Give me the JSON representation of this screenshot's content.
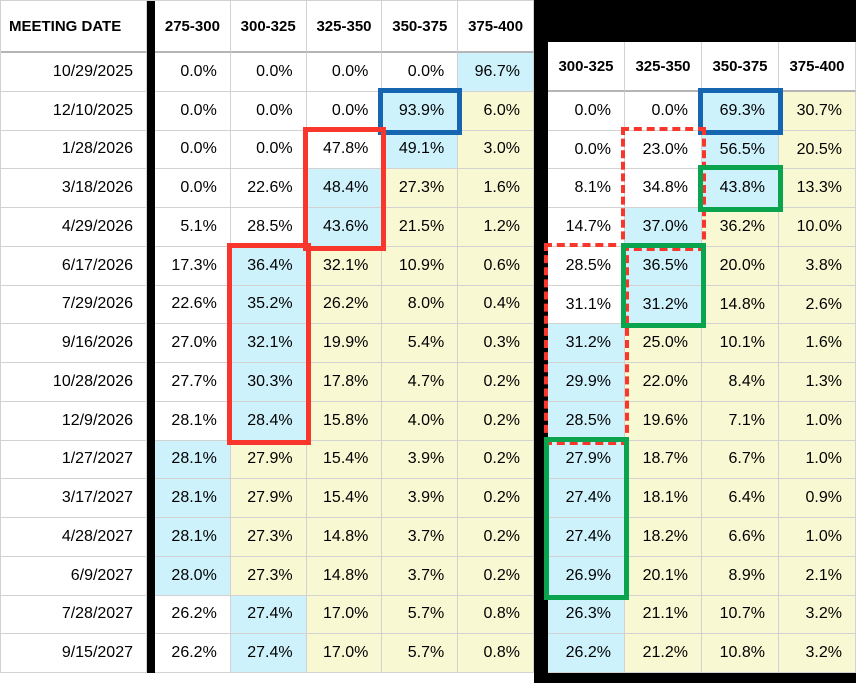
{
  "chart_data": {
    "type": "table",
    "description": "Rate-range probability grid by meeting date, two side-by-side heatmap tables with annotation boxes",
    "tables": [
      {
        "id": "left",
        "columns": [
          "MEETING DATE",
          "275-300",
          "300-325",
          "325-350",
          "350-375",
          "375-400"
        ],
        "rows": [
          {
            "date": "10/29/2025",
            "values": [
              "0.0%",
              "0.0%",
              "0.0%",
              "0.0%",
              "96.7%"
            ],
            "bg": [
              "w",
              "w",
              "w",
              "w",
              "c"
            ]
          },
          {
            "date": "12/10/2025",
            "values": [
              "0.0%",
              "0.0%",
              "0.0%",
              "93.9%",
              "6.0%"
            ],
            "bg": [
              "w",
              "w",
              "w",
              "c",
              "y"
            ]
          },
          {
            "date": "1/28/2026",
            "values": [
              "0.0%",
              "0.0%",
              "47.8%",
              "49.1%",
              "3.0%"
            ],
            "bg": [
              "w",
              "w",
              "w",
              "c",
              "y"
            ]
          },
          {
            "date": "3/18/2026",
            "values": [
              "0.0%",
              "22.6%",
              "48.4%",
              "27.3%",
              "1.6%"
            ],
            "bg": [
              "w",
              "w",
              "c",
              "y",
              "y"
            ]
          },
          {
            "date": "4/29/2026",
            "values": [
              "5.1%",
              "28.5%",
              "43.6%",
              "21.5%",
              "1.2%"
            ],
            "bg": [
              "w",
              "w",
              "c",
              "y",
              "y"
            ]
          },
          {
            "date": "6/17/2026",
            "values": [
              "17.3%",
              "36.4%",
              "32.1%",
              "10.9%",
              "0.6%"
            ],
            "bg": [
              "w",
              "c",
              "y",
              "y",
              "y"
            ]
          },
          {
            "date": "7/29/2026",
            "values": [
              "22.6%",
              "35.2%",
              "26.2%",
              "8.0%",
              "0.4%"
            ],
            "bg": [
              "w",
              "c",
              "y",
              "y",
              "y"
            ]
          },
          {
            "date": "9/16/2026",
            "values": [
              "27.0%",
              "32.1%",
              "19.9%",
              "5.4%",
              "0.3%"
            ],
            "bg": [
              "w",
              "c",
              "y",
              "y",
              "y"
            ]
          },
          {
            "date": "10/28/2026",
            "values": [
              "27.7%",
              "30.3%",
              "17.8%",
              "4.7%",
              "0.2%"
            ],
            "bg": [
              "w",
              "c",
              "y",
              "y",
              "y"
            ]
          },
          {
            "date": "12/9/2026",
            "values": [
              "28.1%",
              "28.4%",
              "15.8%",
              "4.0%",
              "0.2%"
            ],
            "bg": [
              "w",
              "c",
              "y",
              "y",
              "y"
            ]
          },
          {
            "date": "1/27/2027",
            "values": [
              "28.1%",
              "27.9%",
              "15.4%",
              "3.9%",
              "0.2%"
            ],
            "bg": [
              "c",
              "y",
              "y",
              "y",
              "y"
            ]
          },
          {
            "date": "3/17/2027",
            "values": [
              "28.1%",
              "27.9%",
              "15.4%",
              "3.9%",
              "0.2%"
            ],
            "bg": [
              "c",
              "y",
              "y",
              "y",
              "y"
            ]
          },
          {
            "date": "4/28/2027",
            "values": [
              "28.1%",
              "27.3%",
              "14.8%",
              "3.7%",
              "0.2%"
            ],
            "bg": [
              "c",
              "y",
              "y",
              "y",
              "y"
            ]
          },
          {
            "date": "6/9/2027",
            "values": [
              "28.0%",
              "27.3%",
              "14.8%",
              "3.7%",
              "0.2%"
            ],
            "bg": [
              "c",
              "y",
              "y",
              "y",
              "y"
            ]
          },
          {
            "date": "7/28/2027",
            "values": [
              "26.2%",
              "27.4%",
              "17.0%",
              "5.7%",
              "0.8%"
            ],
            "bg": [
              "w",
              "c",
              "y",
              "y",
              "y"
            ]
          },
          {
            "date": "9/15/2027",
            "values": [
              "26.2%",
              "27.4%",
              "17.0%",
              "5.7%",
              "0.8%"
            ],
            "bg": [
              "w",
              "c",
              "y",
              "y",
              "y"
            ]
          }
        ]
      },
      {
        "id": "right",
        "columns": [
          "300-325",
          "325-350",
          "350-375",
          "375-400"
        ],
        "rows": [
          {
            "values": [
              "0.0%",
              "0.0%",
              "69.3%",
              "30.7%"
            ],
            "bg": [
              "w",
              "w",
              "c",
              "y"
            ]
          },
          {
            "values": [
              "0.0%",
              "23.0%",
              "56.5%",
              "20.5%"
            ],
            "bg": [
              "w",
              "w",
              "c",
              "y"
            ]
          },
          {
            "values": [
              "8.1%",
              "34.8%",
              "43.8%",
              "13.3%"
            ],
            "bg": [
              "w",
              "w",
              "c",
              "y"
            ]
          },
          {
            "values": [
              "14.7%",
              "37.0%",
              "36.2%",
              "10.0%"
            ],
            "bg": [
              "w",
              "c",
              "y",
              "y"
            ]
          },
          {
            "values": [
              "28.5%",
              "36.5%",
              "20.0%",
              "3.8%"
            ],
            "bg": [
              "w",
              "c",
              "y",
              "y"
            ]
          },
          {
            "values": [
              "31.1%",
              "31.2%",
              "14.8%",
              "2.6%"
            ],
            "bg": [
              "w",
              "c",
              "y",
              "y"
            ]
          },
          {
            "values": [
              "31.2%",
              "25.0%",
              "10.1%",
              "1.6%"
            ],
            "bg": [
              "c",
              "y",
              "y",
              "y"
            ]
          },
          {
            "values": [
              "29.9%",
              "22.0%",
              "8.4%",
              "1.3%"
            ],
            "bg": [
              "c",
              "y",
              "y",
              "y"
            ]
          },
          {
            "values": [
              "28.5%",
              "19.6%",
              "7.1%",
              "1.0%"
            ],
            "bg": [
              "c",
              "y",
              "y",
              "y"
            ]
          },
          {
            "values": [
              "27.9%",
              "18.7%",
              "6.7%",
              "1.0%"
            ],
            "bg": [
              "c",
              "y",
              "y",
              "y"
            ]
          },
          {
            "values": [
              "27.4%",
              "18.1%",
              "6.4%",
              "0.9%"
            ],
            "bg": [
              "c",
              "y",
              "y",
              "y"
            ]
          },
          {
            "values": [
              "27.4%",
              "18.2%",
              "6.6%",
              "1.0%"
            ],
            "bg": [
              "c",
              "y",
              "y",
              "y"
            ]
          },
          {
            "values": [
              "26.9%",
              "20.1%",
              "8.9%",
              "2.1%"
            ],
            "bg": [
              "c",
              "y",
              "y",
              "y"
            ]
          },
          {
            "values": [
              "26.3%",
              "21.1%",
              "10.7%",
              "3.2%"
            ],
            "bg": [
              "c",
              "y",
              "y",
              "y"
            ]
          },
          {
            "values": [
              "26.2%",
              "21.2%",
              "10.8%",
              "3.2%"
            ],
            "bg": [
              "c",
              "y",
              "y",
              "y"
            ]
          }
        ]
      }
    ],
    "annotations": [
      {
        "table": "left",
        "style": "solid",
        "color": "blue",
        "rows": [
          1,
          1
        ],
        "col": 3
      },
      {
        "table": "left",
        "style": "solid",
        "color": "red",
        "rows": [
          2,
          4
        ],
        "col": 2
      },
      {
        "table": "left",
        "style": "solid",
        "color": "red",
        "rows": [
          5,
          9
        ],
        "col": 1
      },
      {
        "table": "right",
        "style": "solid",
        "color": "blue",
        "rows": [
          0,
          0
        ],
        "col": 2
      },
      {
        "table": "right",
        "style": "dashed",
        "color": "red",
        "rows": [
          1,
          3
        ],
        "col": 1
      },
      {
        "table": "right",
        "style": "dashed",
        "color": "red",
        "rows": [
          4,
          8
        ],
        "col": 0
      },
      {
        "table": "right",
        "style": "solid",
        "color": "green",
        "rows": [
          2,
          2
        ],
        "col": 2
      },
      {
        "table": "right",
        "style": "solid",
        "color": "green",
        "rows": [
          4,
          5
        ],
        "col": 1
      },
      {
        "table": "right",
        "style": "solid",
        "color": "green",
        "rows": [
          9,
          12
        ],
        "col": 0
      }
    ],
    "colors": {
      "max_cell_bg": "#cdf2fc",
      "tail_cell_bg": "#f8f8d2",
      "neutral_cell_bg": "#ffffff",
      "box_blue": "#1565b1",
      "box_red": "#f9362c",
      "box_green": "#0aa44f",
      "backdrop": "#000000"
    }
  }
}
